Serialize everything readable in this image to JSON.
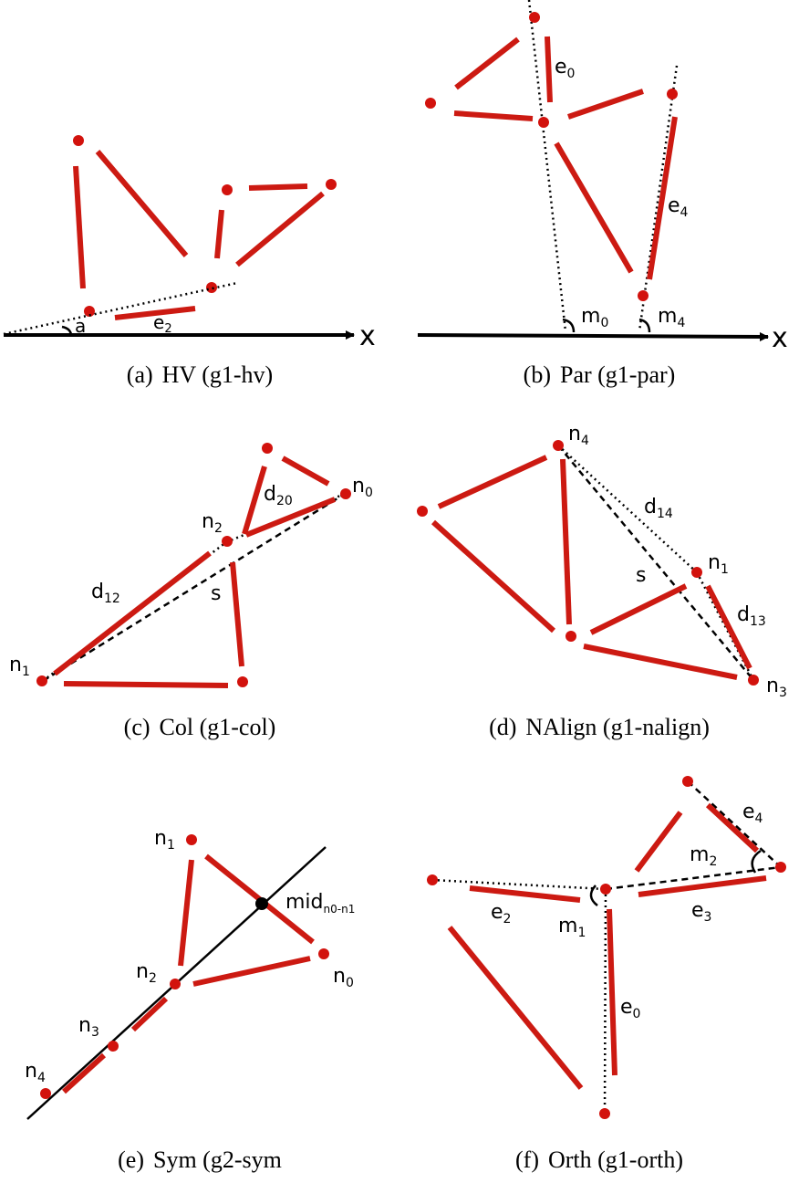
{
  "colors": {
    "edge": "#cc1a12",
    "ink": "#000000",
    "node": "#d2120d"
  },
  "panels": [
    {
      "id": "a",
      "tag": "(a)",
      "title": "HV (g1-hv)",
      "labels": {
        "angle": "a",
        "edge": "e",
        "edge_sub": "2",
        "axis": "x"
      }
    },
    {
      "id": "b",
      "tag": "(b)",
      "title": "Par (g1-par)",
      "labels": {
        "e0": "e",
        "e0_sub": "0",
        "e4": "e",
        "e4_sub": "4",
        "m0": "m",
        "m0_sub": "0",
        "m4": "m",
        "m4_sub": "4",
        "axis": "x"
      }
    },
    {
      "id": "c",
      "tag": "(c)",
      "title": "Col (g1-col)",
      "labels": {
        "n0": "n",
        "n0_sub": "0",
        "n1": "n",
        "n1_sub": "1",
        "n2": "n",
        "n2_sub": "2",
        "d20": "d",
        "d20_sub": "20",
        "d12": "d",
        "d12_sub": "12",
        "s": "s"
      }
    },
    {
      "id": "d",
      "tag": "(d)",
      "title": "NAlign (g1-nalign)",
      "labels": {
        "n4": "n",
        "n4_sub": "4",
        "n1": "n",
        "n1_sub": "1",
        "n3": "n",
        "n3_sub": "3",
        "d14": "d",
        "d14_sub": "14",
        "d13": "d",
        "d13_sub": "13",
        "s": "s"
      }
    },
    {
      "id": "e",
      "tag": "(e)",
      "title": "Sym (g2-sym",
      "labels": {
        "n0": "n",
        "n0_sub": "0",
        "n1": "n",
        "n1_sub": "1",
        "n2": "n",
        "n2_sub": "2",
        "n3": "n",
        "n3_sub": "3",
        "n4": "n",
        "n4_sub": "4",
        "mid": "mid",
        "mid_sub": "n0-n1"
      }
    },
    {
      "id": "f",
      "tag": "(f)",
      "title": "Orth (g1-orth)",
      "labels": {
        "e4": "e",
        "e4_sub": "4",
        "m2": "m",
        "m2_sub": "2",
        "e2": "e",
        "e2_sub": "2",
        "m1": "m",
        "m1_sub": "1",
        "e3": "e",
        "e3_sub": "3",
        "e0": "e",
        "e0_sub": "0"
      }
    }
  ]
}
